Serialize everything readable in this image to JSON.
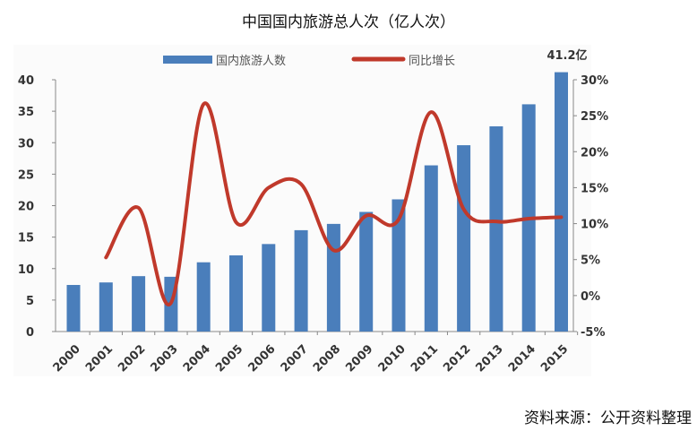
{
  "chart_data": {
    "type": "bar+line",
    "title": "中国国内旅游总人次（亿人次）",
    "categories": [
      "2000",
      "2001",
      "2002",
      "2003",
      "2004",
      "2005",
      "2006",
      "2007",
      "2008",
      "2009",
      "2010",
      "2011",
      "2012",
      "2013",
      "2014",
      "2015"
    ],
    "series": [
      {
        "name": "国内旅游人数",
        "type": "bar",
        "axis": "left",
        "color": "#4a7ebb",
        "values": [
          7.4,
          7.8,
          8.8,
          8.7,
          11.0,
          12.1,
          13.9,
          16.1,
          17.1,
          19.0,
          21.0,
          26.4,
          29.6,
          32.6,
          36.1,
          41.2
        ]
      },
      {
        "name": "同比增长",
        "type": "line",
        "axis": "right",
        "color": "#c0392b",
        "values": [
          null,
          5.3,
          12.2,
          -1.0,
          26.6,
          10.2,
          15.0,
          15.5,
          6.3,
          11.1,
          10.6,
          25.5,
          12.0,
          10.3,
          10.7,
          10.9
        ]
      }
    ],
    "left_axis": {
      "ylim": [
        0,
        40
      ],
      "ticks": [
        "0",
        "5",
        "10",
        "15",
        "20",
        "25",
        "30",
        "35",
        "40"
      ]
    },
    "right_axis": {
      "ylim": [
        -5,
        30
      ],
      "ticks": [
        "-5%",
        "0%",
        "5%",
        "10%",
        "15%",
        "20%",
        "25%",
        "30%"
      ]
    },
    "annotation": "41.2亿",
    "legend_position": "top",
    "grid": false
  },
  "source": "资料来源：公开资料整理"
}
